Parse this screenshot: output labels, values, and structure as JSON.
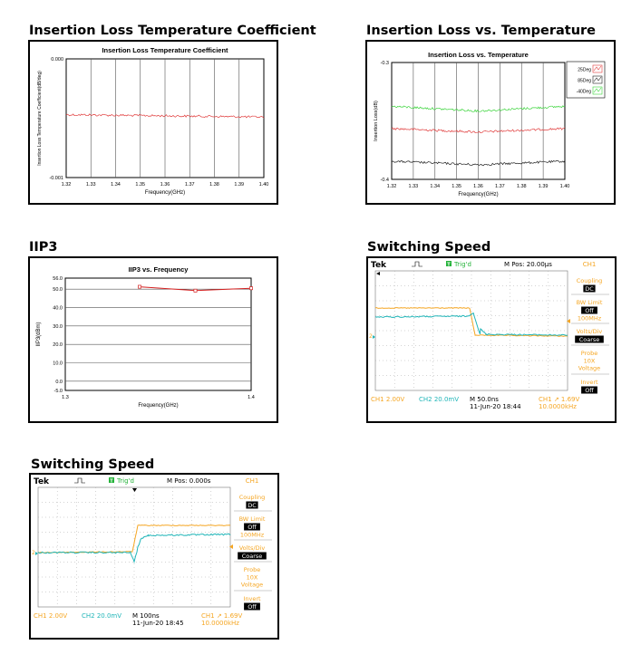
{
  "headings": {
    "h1": "Insertion Loss Temperature Coefficient",
    "h2": "Insertion Loss vs. Temperature",
    "h3": "IIP3",
    "h4": "Switching Speed",
    "h5": "Switching Speed"
  },
  "chart_data": [
    {
      "id": "il_tc",
      "type": "line",
      "title": "Insertion Loss Temperature Coefficient",
      "xlabel": "Frequency(GHz)",
      "ylabel": "Insertion Loss Temperature Coefficient(dB/deg)",
      "xlim": [
        1.32,
        1.4
      ],
      "ylim": [
        -0.001,
        0.0
      ],
      "x_ticks": [
        "1.32",
        "1.33",
        "1.34",
        "1.35",
        "1.36",
        "1.37",
        "1.38",
        "1.39",
        "1.40"
      ],
      "y_ticks": [
        "0.000",
        "-0.001"
      ],
      "grid": true,
      "series": [
        {
          "color": "#e03a3a",
          "x": [
            1.32,
            1.4
          ],
          "y": [
            -0.00047,
            -0.00049
          ]
        }
      ]
    },
    {
      "id": "il_temp",
      "type": "line",
      "title": "Insertion Loss vs. Temperature",
      "xlabel": "Frequency(GHz)",
      "ylabel": "Insertion Loss(dB)",
      "xlim": [
        1.32,
        1.4
      ],
      "ylim": [
        -0.4,
        -0.3
      ],
      "x_ticks": [
        "1.32",
        "1.33",
        "1.34",
        "1.35",
        "1.36",
        "1.37",
        "1.38",
        "1.39",
        "1.40"
      ],
      "y_ticks": [
        "-0.3",
        "-0.4"
      ],
      "grid": true,
      "legend": "top-right",
      "series": [
        {
          "name": "25Deg",
          "color": "#e03a3a",
          "x": [
            1.32,
            1.36,
            1.4
          ],
          "y": [
            -0.3565,
            -0.3595,
            -0.3565
          ]
        },
        {
          "name": "85Deg",
          "color": "#222222",
          "x": [
            1.32,
            1.36,
            1.4
          ],
          "y": [
            -0.3845,
            -0.3875,
            -0.3845
          ]
        },
        {
          "name": "-40Deg",
          "color": "#3ad43a",
          "x": [
            1.32,
            1.36,
            1.4
          ],
          "y": [
            -0.3375,
            -0.3415,
            -0.3375
          ]
        }
      ]
    },
    {
      "id": "iip3",
      "type": "line",
      "title": "IIP3 vs. Frequency",
      "xlabel": "Frequency(GHz)",
      "ylabel": "IIP3(dBm)",
      "xlim": [
        1.3,
        1.4
      ],
      "ylim": [
        -5,
        56
      ],
      "x_ticks": [
        "1.3",
        "1.4"
      ],
      "y_ticks": [
        "56.0",
        "50.0",
        "40.0",
        "30.0",
        "20.0",
        "10.0",
        "0.0",
        "-5.0"
      ],
      "y_tick_values": [
        56,
        50,
        40,
        30,
        20,
        10,
        0,
        -5
      ],
      "grid": true,
      "series": [
        {
          "color": "#d42020",
          "x": [
            1.34,
            1.37,
            1.4
          ],
          "y": [
            51.3,
            49.2,
            50.5
          ]
        }
      ]
    }
  ],
  "scope1": {
    "brand": "Tek",
    "trig": "Trig'd",
    "mpos": "M Pos: 20.00μs",
    "ch_head": "CH1",
    "menu": [
      {
        "label": "Coupling",
        "value": "DC"
      },
      {
        "label": "BW Limit",
        "value": "Off",
        "sub": "100MHz"
      },
      {
        "label": "Volts/Div",
        "value": "Coarse"
      },
      {
        "label": "Probe",
        "value": "",
        "sub2": "10X",
        "sub3": "Voltage"
      },
      {
        "label": "Invert",
        "value": "Off"
      }
    ],
    "ch1": "CH1  2.00V",
    "ch2": "CH2  20.0mV",
    "m": "M 50.0ns",
    "date": "11-Jun-20 18:44",
    "trig_info": "CH1  ↗  1.69V",
    "freq": "10.0000kHz",
    "marker": "2"
  },
  "scope2": {
    "brand": "Tek",
    "trig": "Trig'd",
    "mpos": "M Pos: 0.000s",
    "ch_head": "CH1",
    "menu": [
      {
        "label": "Coupling",
        "value": "DC"
      },
      {
        "label": "BW Limit",
        "value": "Off",
        "sub": "100MHz"
      },
      {
        "label": "Volts/Div",
        "value": "Coarse"
      },
      {
        "label": "Probe",
        "value": "",
        "sub2": "10X",
        "sub3": "Voltage"
      },
      {
        "label": "Invert",
        "value": "Off"
      }
    ],
    "ch1": "CH1  2.00V",
    "ch2": "CH2  20.0mV",
    "m": "M 100ns",
    "date": "11-Jun-20 18:45",
    "trig_info": "CH1  ↗  1.69V",
    "freq": "10.0000kHz",
    "marker": "2"
  }
}
